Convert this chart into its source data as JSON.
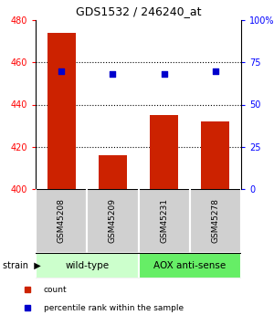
{
  "title": "GDS1532 / 246240_at",
  "samples": [
    "GSM45208",
    "GSM45209",
    "GSM45231",
    "GSM45278"
  ],
  "bar_values": [
    474,
    416,
    435,
    432
  ],
  "percentile_values": [
    70,
    68,
    68,
    70
  ],
  "bar_color": "#cc2200",
  "dot_color": "#0000cc",
  "ylim_left": [
    400,
    480
  ],
  "ylim_right": [
    0,
    100
  ],
  "yticks_left": [
    400,
    420,
    440,
    460,
    480
  ],
  "yticks_right": [
    0,
    25,
    50,
    75,
    100
  ],
  "yticklabels_right": [
    "0",
    "25",
    "50",
    "75",
    "100%"
  ],
  "grid_ticks": [
    420,
    440,
    460
  ],
  "groups": [
    {
      "label": "wild-type",
      "indices": [
        0,
        1
      ],
      "color": "#ccffcc"
    },
    {
      "label": "AOX anti-sense",
      "indices": [
        2,
        3
      ],
      "color": "#66ee66"
    }
  ],
  "strain_label": "strain",
  "legend_items": [
    {
      "color": "#cc2200",
      "label": "count"
    },
    {
      "color": "#0000cc",
      "label": "percentile rank within the sample"
    }
  ],
  "bar_width": 0.55,
  "dot_size": 20
}
